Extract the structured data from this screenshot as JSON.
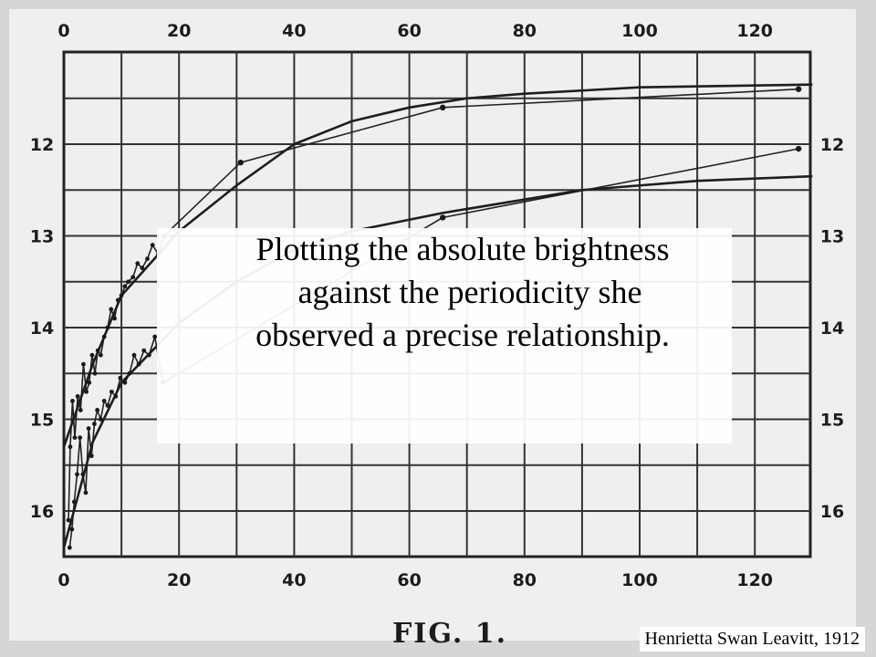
{
  "chart_data": {
    "type": "line",
    "x_ticks": [
      "0",
      "20",
      "40",
      "60",
      "80",
      "100",
      "120"
    ],
    "y_ticks": [
      "12",
      "13",
      "14",
      "15",
      "16"
    ],
    "xlim": [
      0,
      130
    ],
    "ylim": [
      11,
      16.5
    ],
    "y_inverted": true,
    "grid": true,
    "series": [
      {
        "points": [
          [
            0.8,
            16.1
          ],
          [
            1.1,
            15.3
          ],
          [
            1.5,
            14.8
          ],
          [
            1.9,
            15.2
          ],
          [
            2.4,
            14.75
          ],
          [
            2.9,
            14.9
          ],
          [
            3.4,
            14.4
          ],
          [
            3.9,
            14.7
          ],
          [
            4.4,
            14.6
          ],
          [
            4.9,
            14.3
          ],
          [
            5.4,
            14.5
          ],
          [
            5.9,
            14.25
          ],
          [
            6.4,
            14.3
          ],
          [
            7.0,
            14.1
          ],
          [
            7.6,
            14.0
          ],
          [
            8.2,
            13.8
          ],
          [
            8.8,
            13.9
          ],
          [
            9.4,
            13.7
          ],
          [
            10.0,
            13.65
          ],
          [
            10.6,
            13.55
          ],
          [
            11.2,
            13.5
          ],
          [
            12.0,
            13.45
          ],
          [
            12.8,
            13.3
          ],
          [
            13.6,
            13.35
          ],
          [
            14.5,
            13.25
          ],
          [
            15.4,
            13.1
          ],
          [
            16.4,
            13.2
          ],
          [
            17.4,
            13.0
          ],
          [
            30.7,
            12.2
          ],
          [
            65.8,
            11.6
          ],
          [
            127.6,
            11.4
          ]
        ],
        "fit_curve": [
          [
            0,
            15.3
          ],
          [
            5,
            14.4
          ],
          [
            10,
            13.65
          ],
          [
            20,
            12.95
          ],
          [
            30,
            12.45
          ],
          [
            40,
            12.0
          ],
          [
            50,
            11.75
          ],
          [
            60,
            11.6
          ],
          [
            70,
            11.5
          ],
          [
            80,
            11.45
          ],
          [
            100,
            11.38
          ],
          [
            130,
            11.35
          ]
        ]
      },
      {
        "points": [
          [
            1.0,
            16.4
          ],
          [
            1.4,
            16.2
          ],
          [
            1.8,
            15.9
          ],
          [
            2.3,
            15.6
          ],
          [
            2.8,
            15.2
          ],
          [
            3.3,
            15.6
          ],
          [
            3.8,
            15.8
          ],
          [
            4.3,
            15.1
          ],
          [
            4.8,
            15.4
          ],
          [
            5.3,
            15.05
          ],
          [
            5.8,
            14.9
          ],
          [
            6.4,
            15.0
          ],
          [
            7.0,
            14.8
          ],
          [
            7.6,
            14.85
          ],
          [
            8.3,
            14.7
          ],
          [
            9.0,
            14.75
          ],
          [
            9.8,
            14.55
          ],
          [
            10.6,
            14.6
          ],
          [
            11.4,
            14.5
          ],
          [
            12.2,
            14.3
          ],
          [
            13.0,
            14.4
          ],
          [
            13.9,
            14.25
          ],
          [
            14.8,
            14.3
          ],
          [
            15.8,
            14.1
          ],
          [
            17.2,
            14.6
          ],
          [
            65.8,
            12.8
          ],
          [
            127.6,
            12.05
          ]
        ],
        "fit_curve": [
          [
            0,
            16.4
          ],
          [
            5,
            15.25
          ],
          [
            10,
            14.6
          ],
          [
            20,
            13.95
          ],
          [
            30,
            13.5
          ],
          [
            40,
            13.15
          ],
          [
            50,
            12.95
          ],
          [
            65.8,
            12.75
          ],
          [
            90,
            12.5
          ],
          [
            110,
            12.4
          ],
          [
            130,
            12.35
          ]
        ]
      }
    ]
  },
  "figure_label": "FIG. 1.",
  "caption_lines": [
    "Plotting the absolute brightness",
    "against the periodicity she",
    "observed a precise relationship."
  ],
  "credit": "Henrietta Swan Leavitt, 1912"
}
